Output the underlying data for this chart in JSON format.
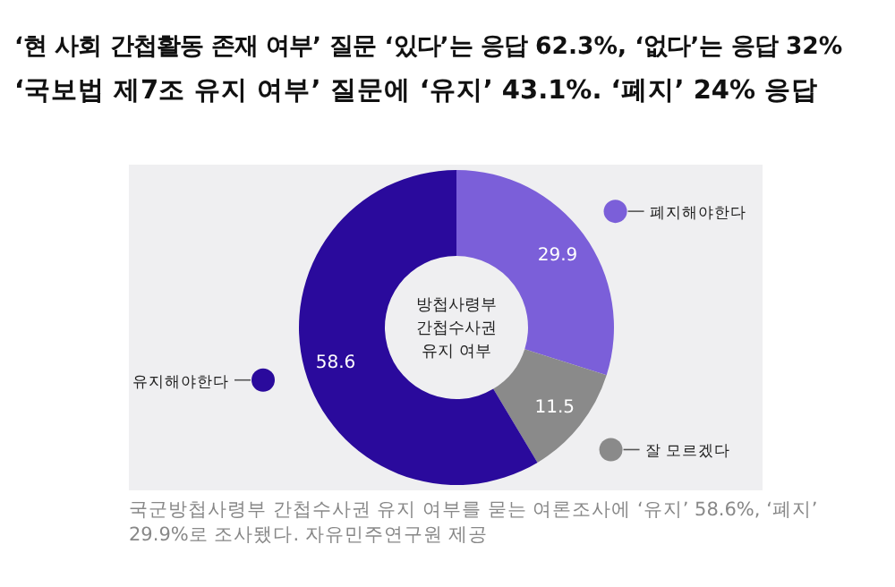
{
  "chart_data": {
    "type": "donut",
    "title": "‘현 사회 간첩활동 존재 여부’ 질문 ‘있다’는 응답 62.3%, ‘없다’는 응답 32%",
    "subtitle": "‘국보법 제7조 유지 여부’ 질문에 ‘유지’ 43.1%. ‘폐지’ 24% 응답",
    "legend_title": "방첩사령부 간첩수사권 유지 여부",
    "categories": [
      "폐지해야한다",
      "잘 모르겠다",
      "유지해야한다"
    ],
    "values": [
      29.9,
      11.5,
      58.6
    ],
    "colors": [
      "#7b5fd9",
      "#8a8a8a",
      "#2a0a9c"
    ],
    "data_labels": true,
    "legend": "right",
    "annotations": [
      "국군방첩사령부 간첩수사권 유지 여부를 묻는 여론조사에 ‘유지’ 58.6%, ‘폐지’ 29.9%로 조사됐다. 자유민주연구원 제공"
    ]
  }
}
